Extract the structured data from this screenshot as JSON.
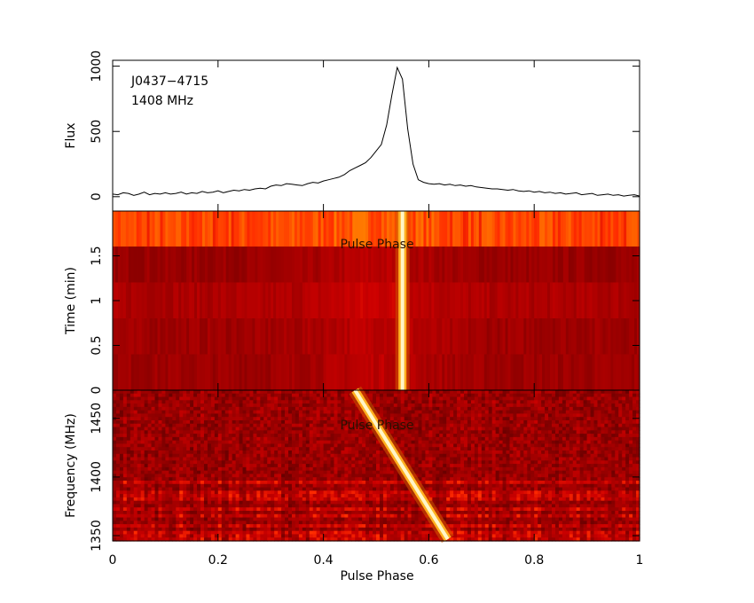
{
  "chart_data": [
    {
      "type": "line",
      "annotations": [
        "J0437−4715",
        "1408 MHz"
      ],
      "ylabel": "Flux",
      "xlim": [
        0,
        1
      ],
      "ylim": [
        -110,
        1045
      ],
      "yticks": [
        0,
        500,
        1000
      ],
      "series": [
        {
          "color": "#000000",
          "x": [
            0,
            0.01,
            0.02,
            0.03,
            0.04,
            0.05,
            0.06,
            0.07,
            0.08,
            0.09,
            0.1,
            0.11,
            0.12,
            0.13,
            0.14,
            0.15,
            0.16,
            0.17,
            0.18,
            0.19,
            0.2,
            0.21,
            0.22,
            0.23,
            0.24,
            0.25,
            0.26,
            0.27,
            0.28,
            0.29,
            0.3,
            0.31,
            0.32,
            0.33,
            0.34,
            0.35,
            0.36,
            0.37,
            0.38,
            0.39,
            0.4,
            0.41,
            0.42,
            0.43,
            0.44,
            0.45,
            0.46,
            0.47,
            0.48,
            0.49,
            0.5,
            0.51,
            0.52,
            0.53,
            0.54,
            0.55,
            0.56,
            0.57,
            0.58,
            0.59,
            0.6,
            0.61,
            0.62,
            0.63,
            0.64,
            0.65,
            0.66,
            0.67,
            0.68,
            0.69,
            0.7,
            0.71,
            0.72,
            0.73,
            0.74,
            0.75,
            0.76,
            0.77,
            0.78,
            0.79,
            0.8,
            0.81,
            0.82,
            0.83,
            0.84,
            0.85,
            0.86,
            0.87,
            0.88,
            0.89,
            0.9,
            0.91,
            0.92,
            0.93,
            0.94,
            0.95,
            0.96,
            0.97,
            0.98,
            0.99,
            1
          ],
          "values": [
            20,
            15,
            30,
            25,
            10,
            20,
            35,
            15,
            25,
            20,
            30,
            20,
            25,
            35,
            20,
            30,
            25,
            40,
            30,
            35,
            45,
            30,
            40,
            50,
            45,
            55,
            50,
            60,
            65,
            60,
            80,
            90,
            85,
            100,
            95,
            90,
            85,
            100,
            110,
            105,
            120,
            130,
            140,
            150,
            170,
            200,
            220,
            240,
            260,
            300,
            350,
            400,
            550,
            780,
            990,
            900,
            520,
            250,
            130,
            110,
            100,
            95,
            100,
            90,
            95,
            85,
            90,
            80,
            85,
            75,
            70,
            65,
            60,
            60,
            55,
            50,
            55,
            45,
            40,
            45,
            35,
            40,
            30,
            35,
            25,
            30,
            20,
            25,
            30,
            15,
            20,
            25,
            10,
            15,
            20,
            10,
            15,
            5,
            10,
            15,
            5
          ]
        }
      ]
    },
    {
      "type": "phase-time",
      "ylabel": "Time (min)",
      "label": "Pulse Phase",
      "xlim": [
        0,
        1
      ],
      "ylim": [
        0,
        2
      ],
      "yticks": [
        0,
        0.5,
        1,
        1.5
      ],
      "track": {
        "x": [
          0.55,
          0.55
        ],
        "values": [
          0,
          2
        ]
      }
    },
    {
      "type": "phase-frequency",
      "ylabel": "Frequency (MHz)",
      "label": "Pulse Phase",
      "xlabel": "Pulse Phase",
      "xlim": [
        0,
        1
      ],
      "ylim": [
        1345.5,
        1474
      ],
      "yticks": [
        1350,
        1400,
        1450
      ],
      "xticks": [
        0,
        0.2,
        0.4,
        0.6,
        0.8,
        1
      ],
      "track": {
        "x": [
          0.636,
          0.46
        ],
        "values": [
          1347,
          1474
        ]
      }
    }
  ]
}
